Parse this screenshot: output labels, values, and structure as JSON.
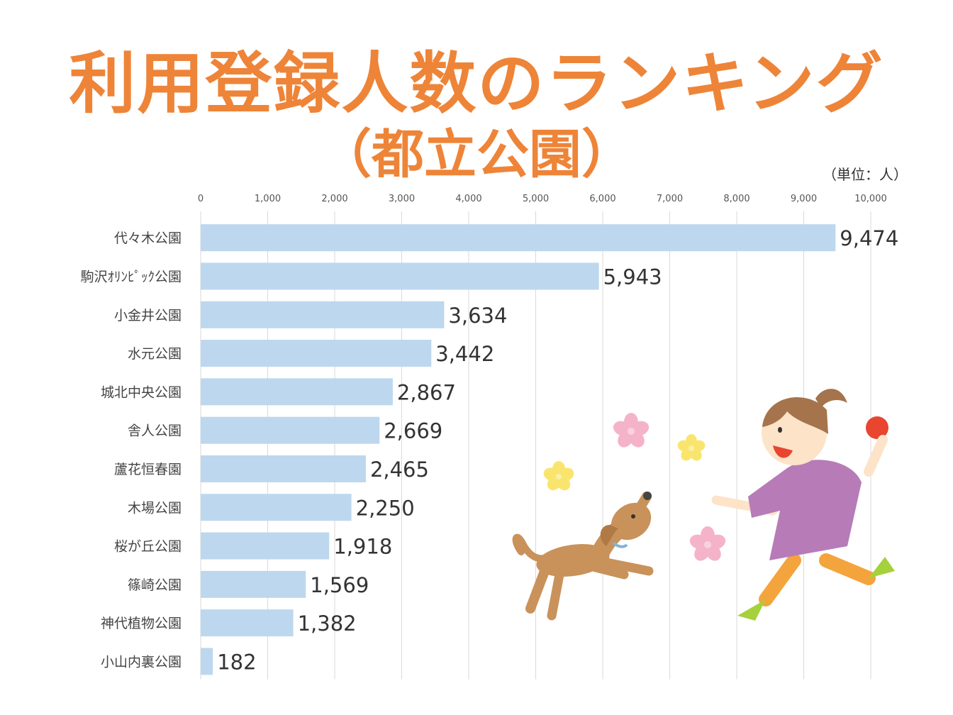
{
  "title": "利用登録人数のランキング",
  "subtitle": "（都立公園）",
  "unit_label": "（単位：人）",
  "chart_data": {
    "type": "bar",
    "orientation": "horizontal",
    "categories": [
      "代々木公園",
      "駒沢ｵﾘﾝﾋﾟｯｸ公園",
      "小金井公園",
      "水元公園",
      "城北中央公園",
      "舎人公園",
      "蘆花恒春園",
      "木場公園",
      "桜が丘公園",
      "篠崎公園",
      "神代植物公園",
      "小山内裏公園"
    ],
    "values": [
      9474,
      5943,
      3634,
      3442,
      2867,
      2669,
      2465,
      2250,
      1918,
      1569,
      1382,
      182
    ],
    "value_labels": [
      "9,474",
      "5,943",
      "3,634",
      "3,442",
      "2,867",
      "2,669",
      "2,465",
      "2,250",
      "1,918",
      "1,569",
      "1,382",
      "182"
    ],
    "xlim": [
      0,
      10000
    ],
    "x_ticks": [
      0,
      1000,
      2000,
      3000,
      4000,
      5000,
      6000,
      7000,
      8000,
      9000,
      10000
    ],
    "x_tick_labels": [
      "0",
      "1,000",
      "2,000",
      "3,000",
      "4,000",
      "5,000",
      "6,000",
      "7,000",
      "8,000",
      "9,000",
      "10,000"
    ],
    "x_axis_position": "top",
    "grid": true,
    "bar_color": "#bdd7ee",
    "grid_color": "#d9d9d9"
  },
  "colors": {
    "title": "#ee8438"
  },
  "illustration": {
    "icons": [
      "girl-with-ball-icon",
      "dog-icon",
      "flower-icon"
    ]
  }
}
